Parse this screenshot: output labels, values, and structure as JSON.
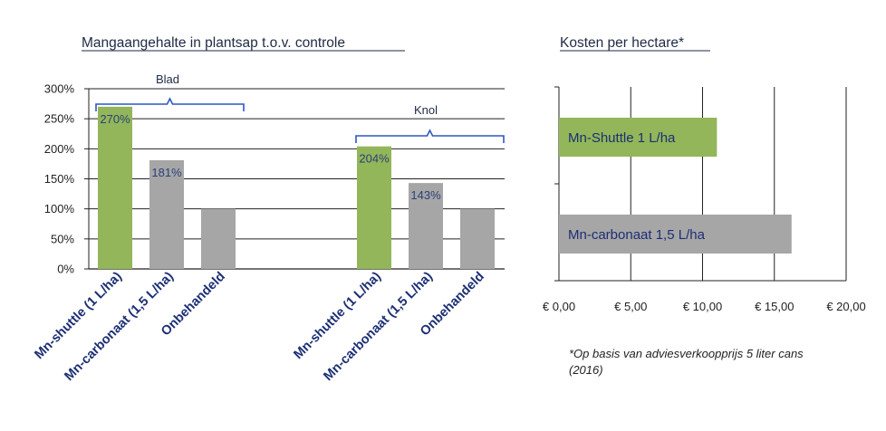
{
  "colors": {
    "green": "#92b659",
    "gray": "#a6a6a6",
    "axis": "#222222",
    "brace": "#2b56c4",
    "label": "#1c2f74"
  },
  "chart_data": [
    {
      "type": "bar",
      "title": "Mangaangehalte in plantsap t.o.v. controle",
      "ylim": [
        0,
        300
      ],
      "yticks": [
        "0%",
        "50%",
        "100%",
        "150%",
        "200%",
        "250%",
        "300%"
      ],
      "grid": true,
      "groups": [
        {
          "name": "Blad",
          "categories": [
            "Mn-shuttle (1 L/ha)",
            "Mn-carbonaat (1,5 L/ha)",
            "Onbehandeld"
          ],
          "values": [
            270,
            181,
            100
          ],
          "labels": [
            "270%",
            "181%",
            ""
          ]
        },
        {
          "name": "Knol",
          "categories": [
            "Mn-shuttle (1 L/ha)",
            "Mn-carbonaat (1,5 L/ha)",
            "Onbehandeld"
          ],
          "values": [
            204,
            143,
            100
          ],
          "labels": [
            "204%",
            "143%",
            ""
          ]
        }
      ]
    },
    {
      "type": "bar",
      "orientation": "horizontal",
      "title": "Kosten per hectare*",
      "xlim": [
        0,
        20
      ],
      "xticks": [
        "€ 0,00",
        "€ 5,00",
        "€ 10,00",
        "€ 15,00",
        "€ 20,00"
      ],
      "grid": true,
      "categories": [
        "Mn-Shuttle 1 L/ha",
        "Mn-carbonaat 1,5 L/ha"
      ],
      "values": [
        11,
        16.2
      ],
      "note": "*Op basis van adviesverkoopprijs 5 liter cans (2016)"
    }
  ]
}
